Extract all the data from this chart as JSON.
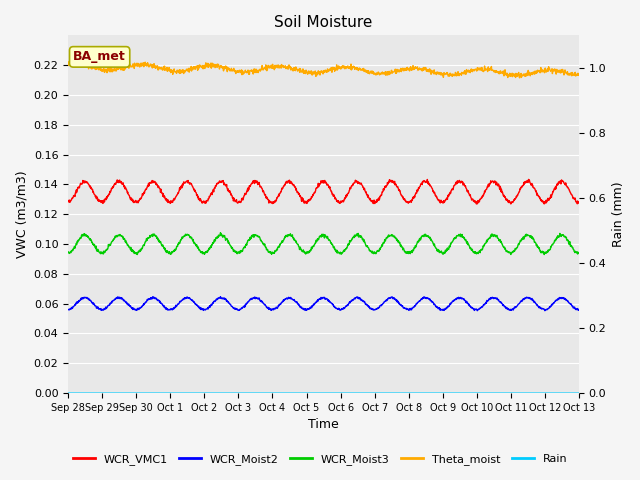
{
  "title": "Soil Moisture",
  "xlabel": "Time",
  "ylabel_left": "VWC (m3/m3)",
  "ylabel_right": "Rain (mm)",
  "ylim_left": [
    0.0,
    0.24
  ],
  "ylim_right": [
    0.0,
    1.1
  ],
  "yticks_left": [
    0.0,
    0.02,
    0.04,
    0.06,
    0.08,
    0.1,
    0.12,
    0.14,
    0.16,
    0.18,
    0.2,
    0.22
  ],
  "yticks_right_vals": [
    0.0,
    0.2,
    0.4,
    0.6,
    0.8,
    1.0
  ],
  "yticks_right_labels": [
    "0.0",
    "0.2",
    "0.4",
    "0.6",
    "0.8",
    "1.0"
  ],
  "xtick_labels": [
    "Sep 28",
    "Sep 29",
    "Sep 30",
    "Oct 1",
    "Oct 2",
    "Oct 3",
    "Oct 4",
    "Oct 5",
    "Oct 6",
    "Oct 7",
    "Oct 8",
    "Oct 9",
    "Oct 10",
    "Oct 11",
    "Oct 12",
    "Oct 13"
  ],
  "n_days": 15,
  "n_points": 1500,
  "series": {
    "WCR_VMC1": {
      "color": "#ff0000",
      "base": 0.135,
      "amp": 0.007,
      "freq": 1.0,
      "phase": 1.5
    },
    "WCR_Moist2": {
      "color": "#0000ff",
      "base": 0.06,
      "amp": 0.004,
      "freq": 1.0,
      "phase": 1.5
    },
    "WCR_Moist3": {
      "color": "#00cc00",
      "base": 0.1,
      "amp": 0.006,
      "freq": 1.0,
      "phase": 1.5
    },
    "Theta_moist": {
      "color": "#ffaa00",
      "base": 0.218,
      "amp": 0.002,
      "freq": 1.0,
      "phase": 0.5
    },
    "Rain": {
      "color": "#00ccff",
      "base": 0.0,
      "amp": 0.0,
      "freq": 0.0,
      "phase": 0.0
    }
  },
  "annotation_text": "BA_met",
  "background_color": "#e8e8e8",
  "fig_bg_color": "#f5f5f5",
  "legend_colors": [
    "#ff0000",
    "#0000ff",
    "#00cc00",
    "#ffaa00",
    "#00ccff"
  ],
  "legend_labels": [
    "WCR_VMC1",
    "WCR_Moist2",
    "WCR_Moist3",
    "Theta_moist",
    "Rain"
  ]
}
